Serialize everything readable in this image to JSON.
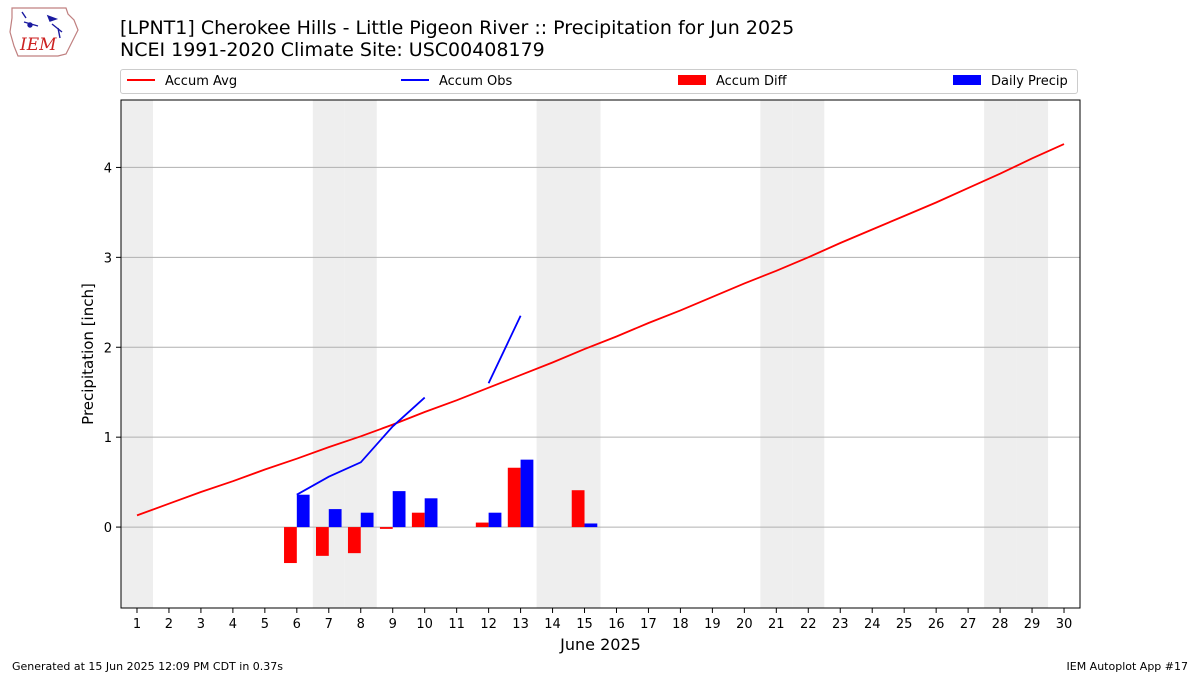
{
  "logo": {
    "text": "IEM"
  },
  "title": {
    "line1": "[LPNT1] Cherokee Hills - Little Pigeon River :: Precipitation for Jun 2025",
    "line2": "NCEI 1991-2020 Climate Site: USC00408179"
  },
  "legend": {
    "items": [
      {
        "label": "Accum Avg",
        "kind": "line",
        "color": "#ff0000"
      },
      {
        "label": "Accum Obs",
        "kind": "line",
        "color": "#0000ff"
      },
      {
        "label": "Accum Diff",
        "kind": "bar",
        "color": "#ff0000"
      },
      {
        "label": "Daily Precip",
        "kind": "bar",
        "color": "#0000ff"
      }
    ]
  },
  "footer": {
    "left": "Generated at 15 Jun 2025 12:09 PM CDT in 0.37s",
    "right": "IEM Autoplot App #17"
  },
  "chart_data": {
    "type": "bar",
    "title": "[LPNT1] Cherokee Hills - Little Pigeon River :: Precipitation for Jun 2025",
    "subtitle": "NCEI 1991-2020 Climate Site: USC00408179",
    "xlabel": "June 2025",
    "ylabel": "Precipitation [inch]",
    "x": [
      1,
      2,
      3,
      4,
      5,
      6,
      7,
      8,
      9,
      10,
      11,
      12,
      13,
      14,
      15,
      16,
      17,
      18,
      19,
      20,
      21,
      22,
      23,
      24,
      25,
      26,
      27,
      28,
      29,
      30
    ],
    "xlim": [
      0.5,
      30.5
    ],
    "ylim": [
      -0.9,
      4.75
    ],
    "yticks": [
      0,
      1,
      2,
      3,
      4
    ],
    "grid": "horizontal",
    "legend_position": "top",
    "weekend_shading_days": [
      1,
      7,
      8,
      14,
      15,
      21,
      22,
      28,
      29
    ],
    "colors": {
      "avg": "#ff0000",
      "obs": "#0000ff",
      "diff": "#ff0000",
      "daily": "#0000ff",
      "weekend": "#eeeeee",
      "grid": "#b0b0b0"
    },
    "series": [
      {
        "name": "Accum Avg",
        "kind": "line",
        "x": [
          1,
          2,
          3,
          4,
          5,
          6,
          7,
          8,
          9,
          10,
          11,
          12,
          13,
          14,
          15,
          16,
          17,
          18,
          19,
          20,
          21,
          22,
          23,
          24,
          25,
          26,
          27,
          28,
          29,
          30
        ],
        "values": [
          0.13,
          0.26,
          0.39,
          0.51,
          0.64,
          0.76,
          0.89,
          1.01,
          1.14,
          1.28,
          1.41,
          1.55,
          1.69,
          1.83,
          1.98,
          2.12,
          2.27,
          2.41,
          2.56,
          2.71,
          2.85,
          3.0,
          3.16,
          3.31,
          3.46,
          3.61,
          3.77,
          3.93,
          4.1,
          4.26
        ]
      },
      {
        "name": "Accum Obs",
        "kind": "line",
        "x": [
          6,
          7,
          8,
          9,
          10,
          11,
          12,
          13
        ],
        "values": [
          0.36,
          0.56,
          0.72,
          1.12,
          1.44,
          null,
          1.6,
          2.35
        ]
      },
      {
        "name": "Accum Diff",
        "kind": "bar",
        "x": [
          6,
          7,
          8,
          9,
          10,
          12,
          13,
          15
        ],
        "values": [
          -0.4,
          -0.32,
          -0.29,
          -0.02,
          0.16,
          0.05,
          0.66,
          0.41
        ]
      },
      {
        "name": "Daily Precip",
        "kind": "bar",
        "x": [
          6,
          7,
          8,
          9,
          10,
          12,
          13,
          15
        ],
        "values": [
          0.36,
          0.2,
          0.16,
          0.4,
          0.32,
          0.16,
          0.75,
          0.04
        ]
      }
    ]
  }
}
